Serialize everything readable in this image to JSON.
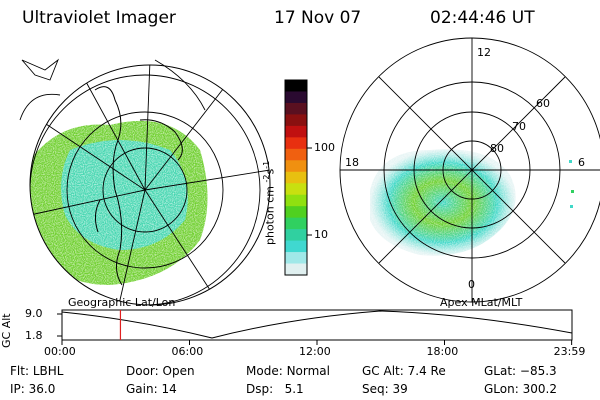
{
  "header": {
    "instrument": "Ultraviolet Imager",
    "date": "17 Nov 07",
    "time": "02:44:46 UT"
  },
  "left_panel": {
    "label": "Geographic Lat/Lon"
  },
  "right_panel": {
    "label": "Apex MLat/MLT",
    "mlt_labels": [
      "12",
      "18",
      "6",
      "0"
    ],
    "mlat_labels": [
      "60",
      "70",
      "80"
    ]
  },
  "colorbar": {
    "unit_label": "photon cm",
    "unit_sup1": "-2",
    "unit_mid": "s",
    "unit_sup2": "-1",
    "tick_100": "100",
    "tick_10": "10",
    "colors": [
      "#000000",
      "#2a0a30",
      "#5a1020",
      "#8a1010",
      "#c01010",
      "#e83010",
      "#f06010",
      "#f09010",
      "#e8c010",
      "#c8e010",
      "#90e010",
      "#50d020",
      "#30d060",
      "#30d0a0",
      "#40d8d0",
      "#a0e8e8",
      "#e0f0f0"
    ]
  },
  "altitude_plot": {
    "ylabel": "GC Alt",
    "y_top": "9.0",
    "y_bottom": "1.8",
    "x_ticks": [
      "00:00",
      "06:00",
      "12:00",
      "18:00",
      "23:59"
    ],
    "current_time_hours": 2.75
  },
  "status": {
    "flt_label": "Flt:",
    "flt_value": "LBHL",
    "ip_label": "IP:",
    "ip_value": "36.0",
    "door_label": "Door:",
    "door_value": "Open",
    "gain_label": "Gain:",
    "gain_value": "14",
    "mode_label": "Mode:",
    "mode_value": "Normal",
    "dsp_label": "Dsp:",
    "dsp_value": "5.1",
    "gcalt_label": "GC Alt:",
    "gcalt_value": "7.4 Re",
    "seq_label": "Seq:",
    "seq_value": "39",
    "glat_label": "GLat:",
    "glat_value": "−85.3",
    "glon_label": "GLon:",
    "glon_value": "300.2"
  },
  "accent_colors": {
    "time_marker": "#e02020",
    "auroral_primary": "#70d030",
    "auroral_secondary": "#40d8c8"
  }
}
